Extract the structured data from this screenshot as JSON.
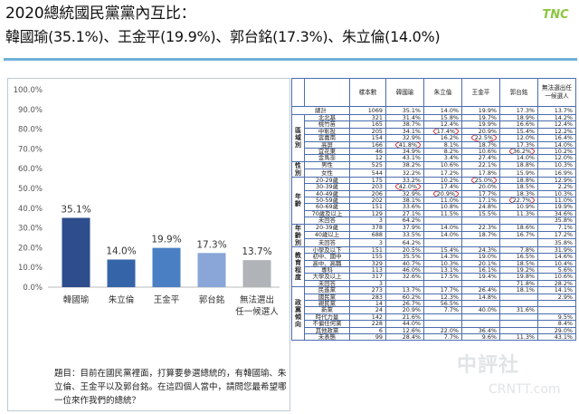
{
  "header": {
    "title": "2020總統國民黨黨內互比：",
    "subtitle": "韓國瑜(35.1%)、王金平(19.9%)、郭台銘(17.3%)、朱立倫(14.0%)",
    "logo_text": "TNC",
    "logo_color": "#8cc63f"
  },
  "chart_data": {
    "type": "bar",
    "categories": [
      "韓國瑜",
      "朱立倫",
      "王金平",
      "郭台銘",
      "無法選出任一候選人"
    ],
    "category_lines": [
      [
        "韓國瑜"
      ],
      [
        "朱立倫"
      ],
      [
        "王金平"
      ],
      [
        "郭台銘"
      ],
      [
        "無法選出",
        "任一候選人"
      ]
    ],
    "values": [
      35.1,
      14.0,
      19.9,
      17.3,
      13.7
    ],
    "value_labels": [
      "35.1%",
      "14.0%",
      "19.9%",
      "17.3%",
      "13.7%"
    ],
    "colors": [
      "#2e4d8c",
      "#3664a8",
      "#4a7fc4",
      "#8aa6d8",
      "#b0b3b7"
    ],
    "ylim": [
      0,
      100
    ],
    "yticks": [
      0,
      10,
      20,
      30,
      40,
      50,
      60,
      70,
      80,
      90,
      100
    ],
    "ytick_labels": [
      "0.0%",
      "10.0%",
      "20.0%",
      "30.0%",
      "40.0%",
      "50.0%",
      "60.0%",
      "70.0%",
      "80.0%",
      "90.0%",
      "100.0%"
    ],
    "grid": false
  },
  "question": "題目：目前在國民黨裡面，打算要參選總統的，有韓國瑜、朱立倫、王金平以及郭台銘。在這四個人當中，請問您最希望哪一位來作我們的總統？",
  "table": {
    "headers": [
      "",
      "",
      "樣本數",
      "韓國瑜",
      "朱立倫",
      "王金平",
      "郭台銘",
      "無法選出任一候選人"
    ],
    "total": {
      "label": "總計",
      "values": [
        "1069",
        "35.1%",
        "14.0%",
        "19.9%",
        "17.3%",
        "13.7%"
      ]
    },
    "groups": [
      {
        "name": "區域別",
        "rows": [
          {
            "label": "北北基",
            "values": [
              "321",
              "31.4%",
              "15.8%",
              "19.7%",
              "18.9%",
              "14.2%"
            ]
          },
          {
            "label": "桃竹苗",
            "values": [
              "165",
              "38.7%",
              "12.4%",
              "19.9%",
              "16.6%",
              "12.4%"
            ]
          },
          {
            "label": "中彰投",
            "values": [
              "205",
              "34.1%",
              "17.4%",
              "20.9%",
              "15.4%",
              "12.2%"
            ]
          },
          {
            "label": "雲嘉南",
            "values": [
              "154",
              "32.9%",
              "16.2%",
              "22.5%",
              "12.0%",
              "16.4%"
            ]
          },
          {
            "label": "高屏",
            "values": [
              "166",
              "41.8%",
              "8.1%",
              "18.7%",
              "17.3%",
              "14.0%"
            ]
          },
          {
            "label": "宜花東",
            "values": [
              "46",
              "34.9%",
              "8.2%",
              "10.6%",
              "36.2%",
              "10.2%"
            ]
          },
          {
            "label": "金馬澎",
            "values": [
              "12",
              "43.1%",
              "3.4%",
              "27.4%",
              "14.0%",
              "12.0%"
            ]
          }
        ]
      },
      {
        "name": "性別",
        "rows": [
          {
            "label": "男性",
            "values": [
              "525",
              "38.2%",
              "10.6%",
              "22.1%",
              "18.8%",
              "10.3%"
            ]
          },
          {
            "label": "女性",
            "values": [
              "544",
              "32.2%",
              "17.2%",
              "17.8%",
              "15.9%",
              "16.9%"
            ]
          }
        ]
      },
      {
        "name": "年齡",
        "rows": [
          {
            "label": "20-29歲",
            "values": [
              "175",
              "33.2%",
              "10.2%",
              "25.0%",
              "18.8%",
              "12.9%"
            ]
          },
          {
            "label": "30-39歲",
            "values": [
              "203",
              "42.0%",
              "17.4%",
              "20.0%",
              "18.5%",
              "2.2%"
            ]
          },
          {
            "label": "40-49歲",
            "values": [
              "206",
              "32.9%",
              "20.9%",
              "17.7%",
              "18.3%",
              "10.3%"
            ]
          },
          {
            "label": "50-59歲",
            "values": [
              "202",
              "38.1%",
              "11.0%",
              "17.1%",
              "22.7%",
              "11.0%"
            ]
          },
          {
            "label": "60-69歲",
            "values": [
              "151",
              "33.6%",
              "10.8%",
              "24.8%",
              "10.9%",
              "19.9%"
            ]
          },
          {
            "label": "70歲及以上",
            "values": [
              "129",
              "27.1%",
              "11.5%",
              "15.5%",
              "11.3%",
              "34.6%"
            ]
          },
          {
            "label": "未回答",
            "values": [
              "3",
              "64.2%",
              "",
              "",
              "",
              "35.8%"
            ]
          }
        ]
      },
      {
        "name": "年齡別",
        "rows": [
          {
            "label": "20-39歲",
            "values": [
              "378",
              "37.9%",
              "14.0%",
              "22.3%",
              "18.6%",
              "7.1%"
            ]
          },
          {
            "label": "40歲以上",
            "values": [
              "688",
              "33.5%",
              "14.0%",
              "18.7%",
              "16.7%",
              "17.2%"
            ]
          },
          {
            "label": "未回答",
            "values": [
              "3",
              "64.2%",
              "",
              "",
              "",
              "35.8%"
            ]
          }
        ]
      },
      {
        "name": "教育程度",
        "rows": [
          {
            "label": "小學及以下",
            "values": [
              "151",
              "20.5%",
              "15.4%",
              "24.3%",
              "7.8%",
              "31.9%"
            ]
          },
          {
            "label": "初中、國中",
            "values": [
              "155",
              "35.5%",
              "14.3%",
              "19.0%",
              "16.5%",
              "14.6%"
            ]
          },
          {
            "label": "高中、高職",
            "values": [
              "329",
              "40.7%",
              "10.3%",
              "20.1%",
              "18.5%",
              "10.4%"
            ]
          },
          {
            "label": "專科",
            "values": [
              "113",
              "46.0%",
              "13.1%",
              "16.1%",
              "19.2%",
              "5.6%"
            ]
          },
          {
            "label": "大學及以上",
            "values": [
              "317",
              "32.6%",
              "17.5%",
              "19.4%",
              "19.8%",
              "10.6%"
            ]
          },
          {
            "label": "未回答",
            "values": [
              "3",
              "",
              "",
              "",
              "71.8%",
              "28.2%"
            ]
          }
        ]
      },
      {
        "name": "政黨傾向",
        "rows": [
          {
            "label": "民進黨",
            "values": [
              "273",
              "13.7%",
              "17.7%",
              "26.4%",
              "18.1%",
              "14.1%"
            ]
          },
          {
            "label": "國民黨",
            "values": [
              "283",
              "60.2%",
              "12.3%",
              "14.8%",
              "",
              "2.9%"
            ]
          },
          {
            "label": "親民黨",
            "values": [
              "14",
              "26.7%",
              "56.5%",
              "",
              "",
              ""
            ]
          },
          {
            "label": "新黨",
            "values": [
              "24",
              "20.9%",
              "7.7%",
              "40.0%",
              "31.6%",
              ""
            ]
          },
          {
            "label": "時代力量",
            "values": [
              "142",
              "21.6%",
              "",
              "",
              "",
              "9.5%"
            ]
          },
          {
            "label": "不偏任何黨",
            "values": [
              "228",
              "44.0%",
              "",
              "",
              "",
              "8.4%"
            ]
          },
          {
            "label": "其他政黨",
            "values": [
              "6",
              "12.6%",
              "22.0%",
              "36.4%",
              "",
              "29.0%"
            ]
          },
          {
            "label": "未表態",
            "values": [
              "99",
              "28.4%",
              "7.7%",
              "9.6%",
              "11.3%",
              "43.1%"
            ]
          }
        ]
      }
    ]
  },
  "watermark": {
    "line1": "中評社",
    "line2": "CRNTT.com"
  }
}
